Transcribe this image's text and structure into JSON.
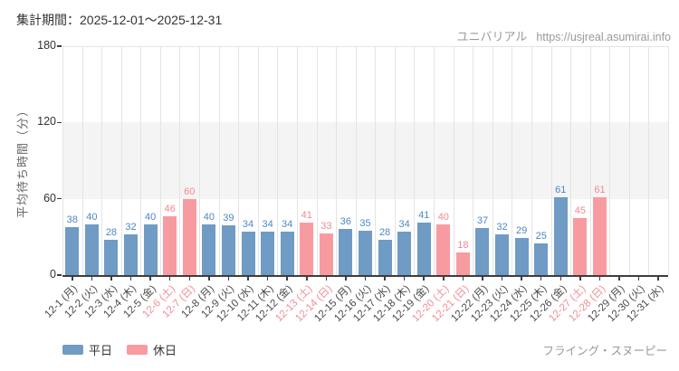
{
  "header": {
    "period": "集計期間：2025-12-01～2025-12-31",
    "brand": "ユニバリアル",
    "url": "https://usjreal.asumirai.info"
  },
  "legend": {
    "weekday": "平日",
    "holiday": "休日"
  },
  "footer": {
    "attraction": "フライング・スヌーピー"
  },
  "colors": {
    "weekday_bar": "#6f9bc5",
    "holiday_bar": "#f89ba1",
    "weekday_value": "#4d88c4",
    "holiday_value": "#f6868f",
    "weekday_tick_label": "#494949",
    "holiday_tick_label": "#f28e96",
    "band": "#f3f4f3",
    "gridline": "#e3e5e3",
    "axis": "#3d3d3d",
    "y_tick_label": "#333333"
  },
  "chart_data": {
    "type": "bar",
    "title": "集計期間：2025-12-01～2025-12-31",
    "ylabel": "平均待ち時間（分）",
    "xlabel": "",
    "ylim": [
      0,
      180
    ],
    "yticks": [
      0,
      60,
      120,
      180
    ],
    "highlight_band": [
      60,
      120
    ],
    "grid": true,
    "legend_position": "bottom-left",
    "series_legend": [
      {
        "name": "平日",
        "color": "#6f9bc5"
      },
      {
        "name": "休日",
        "color": "#f89ba1"
      }
    ],
    "categories": [
      "12-1 (月)",
      "12-2 (火)",
      "12-3 (水)",
      "12-4 (木)",
      "12-5 (金)",
      "12-6 (土)",
      "12-7 (日)",
      "12-8 (月)",
      "12-9 (火)",
      "12-10 (水)",
      "12-11 (木)",
      "12-12 (金)",
      "12-13 (土)",
      "12-14 (日)",
      "12-15 (月)",
      "12-16 (火)",
      "12-17 (水)",
      "12-18 (木)",
      "12-19 (金)",
      "12-20 (土)",
      "12-21 (日)",
      "12-22 (月)",
      "12-23 (火)",
      "12-24 (水)",
      "12-25 (木)",
      "12-26 (金)",
      "12-27 (土)",
      "12-28 (日)",
      "12-29 (月)",
      "12-30 (火)",
      "12-31 (水)"
    ],
    "values": [
      38,
      40,
      28,
      32,
      40,
      46,
      60,
      40,
      39,
      34,
      34,
      34,
      41,
      33,
      36,
      35,
      28,
      34,
      41,
      40,
      18,
      37,
      32,
      29,
      25,
      61,
      45,
      61,
      null,
      null,
      null
    ],
    "day_types": [
      "weekday",
      "weekday",
      "weekday",
      "weekday",
      "weekday",
      "holiday",
      "holiday",
      "weekday",
      "weekday",
      "weekday",
      "weekday",
      "weekday",
      "holiday",
      "holiday",
      "weekday",
      "weekday",
      "weekday",
      "weekday",
      "weekday",
      "holiday",
      "holiday",
      "weekday",
      "weekday",
      "weekday",
      "weekday",
      "weekday",
      "holiday",
      "holiday",
      "weekday",
      "weekday",
      "weekday"
    ]
  }
}
